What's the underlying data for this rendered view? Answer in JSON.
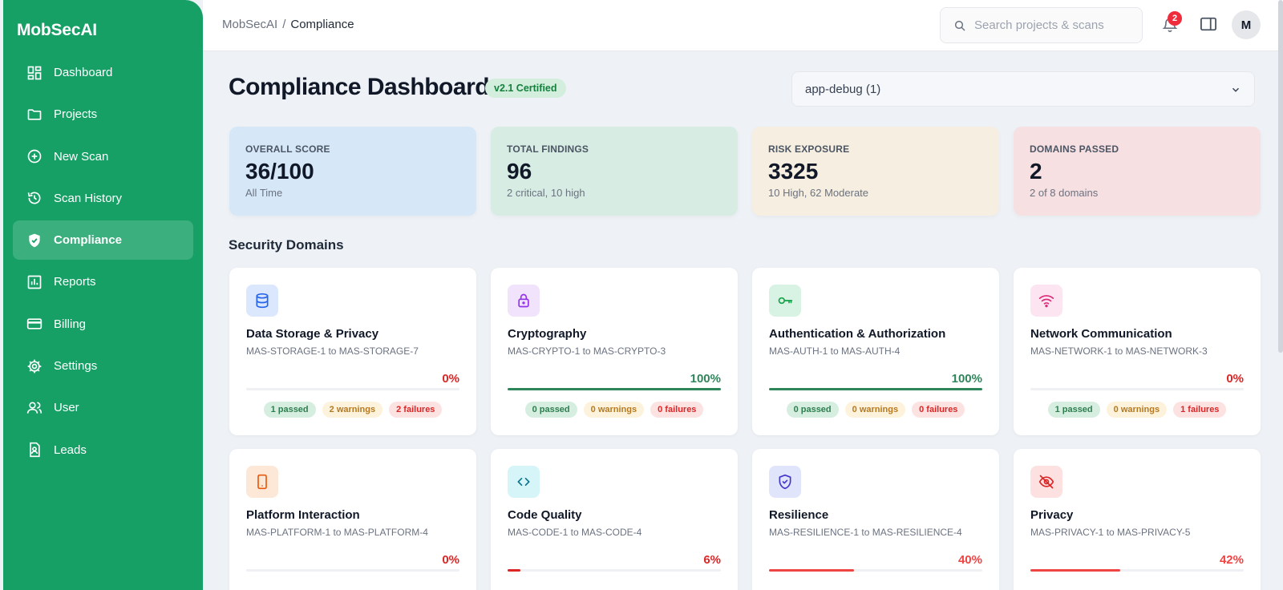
{
  "app": {
    "name": "MobSecAI"
  },
  "sidebar": {
    "items": [
      {
        "label": "Dashboard",
        "icon": "dashboard-icon",
        "active": false
      },
      {
        "label": "Projects",
        "icon": "folder-icon",
        "active": false
      },
      {
        "label": "New Scan",
        "icon": "plus-circle-icon",
        "active": false
      },
      {
        "label": "Scan History",
        "icon": "history-icon",
        "active": false
      },
      {
        "label": "Compliance",
        "icon": "shield-check-icon",
        "active": true
      },
      {
        "label": "Reports",
        "icon": "bar-chart-icon",
        "active": false
      },
      {
        "label": "Billing",
        "icon": "credit-card-icon",
        "active": false
      },
      {
        "label": "Settings",
        "icon": "gear-icon",
        "active": false
      },
      {
        "label": "User",
        "icon": "users-icon",
        "active": false
      },
      {
        "label": "Leads",
        "icon": "contact-document-icon",
        "active": false
      }
    ]
  },
  "topbar": {
    "breadcrumb": {
      "root": "MobSecAI",
      "separator": "/",
      "current": "Compliance"
    },
    "search": {
      "placeholder": "Search projects & scans",
      "value": ""
    },
    "notifications": {
      "count": "2"
    },
    "avatar": {
      "initial": "M"
    }
  },
  "header": {
    "title": "Compliance Dashboard",
    "badge": "v2.1 Certified",
    "app_select": "app-debug (1)"
  },
  "stats": [
    {
      "label": "OVERALL SCORE",
      "value": "36/100",
      "sub": "All Time",
      "bg": "#d6e8f8"
    },
    {
      "label": "TOTAL FINDINGS",
      "value": "96",
      "sub": "2 critical, 10 high",
      "bg": "#d7ece3"
    },
    {
      "label": "RISK EXPOSURE",
      "value": "3325",
      "sub": "10 High, 62 Moderate",
      "bg": "#f6eee0"
    },
    {
      "label": "DOMAINS PASSED",
      "value": "2",
      "sub": "2 of 8 domains",
      "bg": "#f7e0e2"
    }
  ],
  "section": {
    "title": "Security Domains"
  },
  "domains": [
    {
      "title": "Data Storage & Privacy",
      "sub": "MAS-STORAGE-1 to MAS-STORAGE-7",
      "pct": "0%",
      "progress": 0,
      "passed": "1 passed",
      "warnings": "2 warnings",
      "failures": "2 failures",
      "icon": "database-icon",
      "icon_bg": "#dbe7fd",
      "icon_color": "#2563eb",
      "status_color": "#dc2626"
    },
    {
      "title": "Cryptography",
      "sub": "MAS-CRYPTO-1 to MAS-CRYPTO-3",
      "pct": "100%",
      "progress": 100,
      "passed": "0 passed",
      "warnings": "0 warnings",
      "failures": "0 failures",
      "icon": "lock-icon",
      "icon_bg": "#f0e3fb",
      "icon_color": "#9333ea",
      "status_color": "#2f855a"
    },
    {
      "title": "Authentication & Authorization",
      "sub": "MAS-AUTH-1 to MAS-AUTH-4",
      "pct": "100%",
      "progress": 100,
      "passed": "0 passed",
      "warnings": "0 warnings",
      "failures": "0 failures",
      "icon": "key-icon",
      "icon_bg": "#d8f3e3",
      "icon_color": "#16a34a",
      "status_color": "#2f855a"
    },
    {
      "title": "Network Communication",
      "sub": "MAS-NETWORK-1 to MAS-NETWORK-3",
      "pct": "0%",
      "progress": 0,
      "passed": "1 passed",
      "warnings": "0 warnings",
      "failures": "1 failures",
      "icon": "wifi-icon",
      "icon_bg": "#fce4f0",
      "icon_color": "#db2777",
      "status_color": "#dc2626"
    },
    {
      "title": "Platform Interaction",
      "sub": "MAS-PLATFORM-1 to MAS-PLATFORM-4",
      "pct": "0%",
      "progress": 0,
      "passed": "",
      "warnings": "",
      "failures": "",
      "icon": "smartphone-icon",
      "icon_bg": "#fde8d7",
      "icon_color": "#ea580c",
      "status_color": "#dc2626"
    },
    {
      "title": "Code Quality",
      "sub": "MAS-CODE-1 to MAS-CODE-4",
      "pct": "6%",
      "progress": 6,
      "passed": "",
      "warnings": "",
      "failures": "",
      "icon": "code-icon",
      "icon_bg": "#d5f5f8",
      "icon_color": "#0e7490",
      "status_color": "#dc2626"
    },
    {
      "title": "Resilience",
      "sub": "MAS-RESILIENCE-1 to MAS-RESILIENCE-4",
      "pct": "40%",
      "progress": 40,
      "passed": "",
      "warnings": "",
      "failures": "",
      "icon": "shield-check-icon",
      "icon_bg": "#e0e5fb",
      "icon_color": "#4338ca",
      "status_color": "#ef4444"
    },
    {
      "title": "Privacy",
      "sub": "MAS-PRIVACY-1 to MAS-PRIVACY-5",
      "pct": "42%",
      "progress": 42,
      "passed": "",
      "warnings": "",
      "failures": "",
      "icon": "eye-off-icon",
      "icon_bg": "#fde1e1",
      "icon_color": "#dc2626",
      "status_color": "#ef4444"
    }
  ]
}
